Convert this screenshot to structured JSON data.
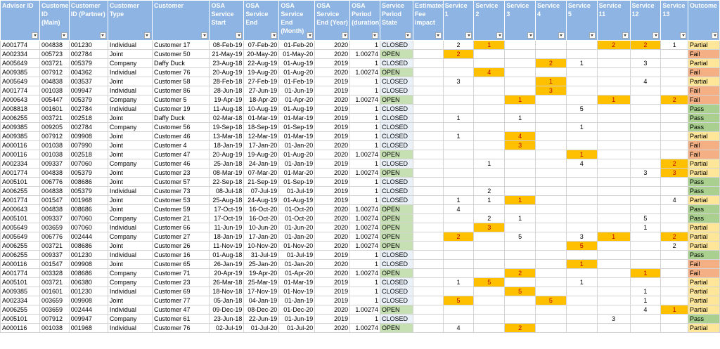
{
  "columns": [
    {
      "label": "Adviser ID",
      "align": "l"
    },
    {
      "label": "Customer ID (Main)",
      "align": "l"
    },
    {
      "label": "Customer ID (Partner)",
      "align": "l"
    },
    {
      "label": "Customer Type",
      "align": "l"
    },
    {
      "label": "Customer",
      "align": "l"
    },
    {
      "label": "OSA Service Start",
      "align": "r"
    },
    {
      "label": "OSA Service End",
      "align": "r"
    },
    {
      "label": "OSA Service End (Month)",
      "align": "r"
    },
    {
      "label": "OSA Service End (Year)",
      "align": "r"
    },
    {
      "label": "OSA Period (duration)",
      "align": "r"
    },
    {
      "label": "Service Period State",
      "align": "l"
    },
    {
      "label": "Estimated Fee impact",
      "align": "r"
    },
    {
      "label": "Service 1",
      "align": "c"
    },
    {
      "label": "Service 2",
      "align": "c"
    },
    {
      "label": "Service 3",
      "align": "c"
    },
    {
      "label": "Service 4",
      "align": "c"
    },
    {
      "label": "Service 5",
      "align": "c"
    },
    {
      "label": "Service 11",
      "align": "c"
    },
    {
      "label": "Service 12",
      "align": "c"
    },
    {
      "label": "Service 13",
      "align": "c"
    },
    {
      "label": "Outcome",
      "align": "l"
    }
  ],
  "colors": {
    "header_bg": "#8db4e2",
    "open_state": "#c6e0b4",
    "closed_state": "#eaf1f9",
    "service_highlight": "#ffc000",
    "service_highlight_text": "#c00000",
    "outcome_partial": "#ffe699",
    "outcome_fail": "#f4b084",
    "outcome_pass": "#a9d08e"
  },
  "rows": [
    {
      "cells": [
        "A001774",
        "004838",
        "001230",
        "Individual",
        "Customer 17",
        "08-Feb-19",
        "07-Feb-20",
        "01-Feb-20",
        "2020",
        "1",
        "CLOSED",
        "",
        "2",
        "1",
        "",
        "",
        "",
        "2",
        "2",
        "1",
        "Partial"
      ],
      "hl": [
        13,
        17,
        18
      ]
    },
    {
      "cells": [
        "A002334",
        "005723",
        "002784",
        "Joint",
        "Customer 50",
        "21-May-19",
        "20-May-20",
        "01-May-20",
        "2020",
        "1.00274",
        "OPEN",
        "",
        "2",
        "",
        "",
        "",
        "",
        "",
        "",
        "",
        "Fail"
      ],
      "hl": [
        12
      ]
    },
    {
      "cells": [
        "A005649",
        "003721",
        "005379",
        "Company",
        "Daffy Duck",
        "23-Aug-18",
        "22-Aug-19",
        "01-Aug-19",
        "2019",
        "1",
        "CLOSED",
        "",
        "",
        "",
        "",
        "2",
        "1",
        "",
        "3",
        "",
        "Partial"
      ],
      "hl": [
        15
      ]
    },
    {
      "cells": [
        "A009385",
        "007912",
        "004362",
        "Individual",
        "Customer 76",
        "20-Aug-19",
        "19-Aug-20",
        "01-Aug-20",
        "2020",
        "1.00274",
        "OPEN",
        "",
        "",
        "4",
        "",
        "",
        "",
        "",
        "",
        "",
        "Fail"
      ],
      "hl": [
        13
      ]
    },
    {
      "cells": [
        "A005649",
        "004838",
        "003537",
        "Joint",
        "Customer 58",
        "28-Feb-18",
        "27-Feb-19",
        "01-Feb-19",
        "2019",
        "1",
        "CLOSED",
        "",
        "3",
        "",
        "",
        "1",
        "",
        "",
        "4",
        "",
        "Partial"
      ],
      "hl": [
        15
      ]
    },
    {
      "cells": [
        "A001774",
        "001038",
        "009947",
        "Individual",
        "Customer 86",
        "28-Jun-18",
        "27-Jun-19",
        "01-Jun-19",
        "2019",
        "1",
        "CLOSED",
        "",
        "",
        "",
        "",
        "3",
        "",
        "",
        "",
        "",
        "Fail"
      ],
      "hl": [
        15
      ]
    },
    {
      "cells": [
        "A000643",
        "005447",
        "005379",
        "Company",
        "Customer 5",
        "19-Apr-19",
        "18-Apr-20",
        "01-Apr-20",
        "2020",
        "1.00274",
        "OPEN",
        "",
        "",
        "",
        "1",
        "",
        "",
        "1",
        "",
        "2",
        "Fail"
      ],
      "hl": [
        14,
        17,
        19
      ]
    },
    {
      "cells": [
        "A008818",
        "001601",
        "002784",
        "Individual",
        "Customer 19",
        "11-Aug-18",
        "10-Aug-19",
        "01-Aug-19",
        "2019",
        "1",
        "CLOSED",
        "",
        "",
        "",
        "",
        "",
        "5",
        "",
        "",
        "",
        "Pass"
      ],
      "hl": []
    },
    {
      "cells": [
        "A006255",
        "003721",
        "002518",
        "Joint",
        "Daffy Duck",
        "02-Mar-18",
        "01-Mar-19",
        "01-Mar-19",
        "2019",
        "1",
        "CLOSED",
        "",
        "1",
        "",
        "1",
        "",
        "",
        "",
        "",
        "",
        "Pass"
      ],
      "hl": []
    },
    {
      "cells": [
        "A009385",
        "009205",
        "002784",
        "Company",
        "Customer 56",
        "19-Sep-18",
        "18-Sep-19",
        "01-Sep-19",
        "2019",
        "1",
        "CLOSED",
        "",
        "",
        "",
        "",
        "",
        "1",
        "",
        "",
        "",
        "Pass"
      ],
      "hl": []
    },
    {
      "cells": [
        "A009385",
        "007912",
        "009908",
        "Joint",
        "Customer 46",
        "13-Mar-18",
        "12-Mar-19",
        "01-Mar-19",
        "2019",
        "1",
        "CLOSED",
        "",
        "1",
        "",
        "4",
        "",
        "",
        "",
        "",
        "",
        "Partial"
      ],
      "hl": [
        14
      ]
    },
    {
      "cells": [
        "A000116",
        "001038",
        "007990",
        "Joint",
        "Customer 4",
        "18-Jan-19",
        "17-Jan-20",
        "01-Jan-20",
        "2020",
        "1",
        "CLOSED",
        "",
        "",
        "",
        "3",
        "",
        "",
        "",
        "",
        "",
        "Fail"
      ],
      "hl": [
        14
      ]
    },
    {
      "cells": [
        "A000116",
        "001038",
        "002518",
        "Joint",
        "Customer 47",
        "20-Aug-19",
        "19-Aug-20",
        "01-Aug-20",
        "2020",
        "1.00274",
        "OPEN",
        "",
        "",
        "",
        "",
        "",
        "1",
        "",
        "",
        "",
        "Fail"
      ],
      "hl": [
        16
      ]
    },
    {
      "cells": [
        "A002334",
        "009337",
        "007060",
        "Company",
        "Customer 46",
        "25-Jan-18",
        "24-Jan-19",
        "01-Jan-19",
        "2019",
        "1",
        "CLOSED",
        "",
        "",
        "1",
        "",
        "",
        "4",
        "",
        "",
        "2",
        "Partial"
      ],
      "hl": [
        19
      ]
    },
    {
      "cells": [
        "A001774",
        "004838",
        "005379",
        "Joint",
        "Customer 23",
        "08-Mar-19",
        "07-Mar-20",
        "01-Mar-20",
        "2020",
        "1.00274",
        "OPEN",
        "",
        "",
        "",
        "",
        "",
        "",
        "",
        "3",
        "3",
        "Partial"
      ],
      "hl": [
        19
      ]
    },
    {
      "cells": [
        "A005101",
        "006776",
        "008686",
        "Joint",
        "Customer 57",
        "22-Sep-18",
        "21-Sep-19",
        "01-Sep-19",
        "2019",
        "1",
        "CLOSED",
        "",
        "",
        "",
        "",
        "",
        "",
        "",
        "",
        "",
        "Pass"
      ],
      "hl": []
    },
    {
      "cells": [
        "A006255",
        "004838",
        "005379",
        "Individual",
        "Customer 73",
        "08-Jul-18",
        "07-Jul-19",
        "01-Jul-19",
        "2019",
        "1",
        "CLOSED",
        "",
        "",
        "2",
        "",
        "",
        "",
        "",
        "",
        "",
        "Pass"
      ],
      "hl": []
    },
    {
      "cells": [
        "A001774",
        "001547",
        "001968",
        "Joint",
        "Customer 53",
        "25-Aug-18",
        "24-Aug-19",
        "01-Aug-19",
        "2019",
        "1",
        "CLOSED",
        "",
        "1",
        "1",
        "1",
        "",
        "",
        "",
        "",
        "4",
        "Partial"
      ],
      "hl": [
        14
      ]
    },
    {
      "cells": [
        "A000643",
        "004838",
        "008686",
        "Joint",
        "Customer 59",
        "17-Oct-19",
        "16-Oct-20",
        "01-Oct-20",
        "2020",
        "1.00274",
        "OPEN",
        "",
        "4",
        "",
        "",
        "",
        "",
        "",
        "",
        "",
        "Pass"
      ],
      "hl": []
    },
    {
      "cells": [
        "A005101",
        "009337",
        "007060",
        "Company",
        "Customer 21",
        "17-Oct-19",
        "16-Oct-20",
        "01-Oct-20",
        "2020",
        "1.00274",
        "OPEN",
        "",
        "",
        "2",
        "1",
        "",
        "",
        "",
        "5",
        "",
        "Pass"
      ],
      "hl": []
    },
    {
      "cells": [
        "A005649",
        "003659",
        "007060",
        "Individual",
        "Customer 66",
        "11-Jun-19",
        "10-Jun-20",
        "01-Jun-20",
        "2020",
        "1.00274",
        "OPEN",
        "",
        "",
        "3",
        "",
        "",
        "",
        "",
        "1",
        "",
        "Partial"
      ],
      "hl": [
        13
      ]
    },
    {
      "cells": [
        "A005649",
        "006776",
        "002444",
        "Company",
        "Customer 27",
        "18-Jan-19",
        "17-Jan-20",
        "01-Jan-20",
        "2020",
        "1.00274",
        "OPEN",
        "",
        "2",
        "",
        "5",
        "",
        "3",
        "1",
        "",
        "2",
        "Partial"
      ],
      "hl": [
        12,
        17,
        19
      ]
    },
    {
      "cells": [
        "A006255",
        "003721",
        "008686",
        "Joint",
        "Customer 26",
        "11-Nov-19",
        "10-Nov-20",
        "01-Nov-20",
        "2020",
        "1.00274",
        "OPEN",
        "",
        "",
        "",
        "",
        "",
        "5",
        "",
        "",
        "2",
        "Partial"
      ],
      "hl": [
        16
      ]
    },
    {
      "cells": [
        "A006255",
        "009337",
        "001230",
        "Individual",
        "Customer 16",
        "01-Aug-18",
        "31-Jul-19",
        "01-Jul-19",
        "2019",
        "1",
        "CLOSED",
        "",
        "",
        "",
        "",
        "",
        "",
        "",
        "",
        "",
        "Pass"
      ],
      "hl": []
    },
    {
      "cells": [
        "A000116",
        "001547",
        "009908",
        "Joint",
        "Customer 65",
        "26-Jan-19",
        "25-Jan-20",
        "01-Jan-20",
        "2020",
        "1",
        "CLOSED",
        "",
        "",
        "",
        "",
        "",
        "1",
        "",
        "",
        "",
        "Fail"
      ],
      "hl": [
        16
      ]
    },
    {
      "cells": [
        "A001774",
        "003328",
        "008686",
        "Company",
        "Customer 71",
        "20-Apr-19",
        "19-Apr-20",
        "01-Apr-20",
        "2020",
        "1.00274",
        "OPEN",
        "",
        "",
        "",
        "2",
        "",
        "",
        "",
        "1",
        "",
        "Fail"
      ],
      "hl": [
        14,
        18
      ]
    },
    {
      "cells": [
        "A005101",
        "003721",
        "006380",
        "Company",
        "Customer 23",
        "26-Mar-18",
        "25-Mar-19",
        "01-Mar-19",
        "2019",
        "1",
        "CLOSED",
        "",
        "1",
        "5",
        "",
        "",
        "1",
        "",
        "",
        "",
        "Partial"
      ],
      "hl": [
        13
      ]
    },
    {
      "cells": [
        "A009385",
        "001601",
        "001230",
        "Individual",
        "Customer 69",
        "18-Nov-18",
        "17-Nov-19",
        "01-Nov-19",
        "2019",
        "1",
        "CLOSED",
        "",
        "",
        "",
        "5",
        "",
        "",
        "",
        "1",
        "",
        "Partial"
      ],
      "hl": [
        14
      ]
    },
    {
      "cells": [
        "A002334",
        "003659",
        "009908",
        "Joint",
        "Customer 77",
        "05-Jan-18",
        "04-Jan-19",
        "01-Jan-19",
        "2019",
        "1",
        "CLOSED",
        "",
        "5",
        "",
        "",
        "5",
        "",
        "",
        "1",
        "",
        "Partial"
      ],
      "hl": [
        12,
        15
      ]
    },
    {
      "cells": [
        "A006255",
        "003659",
        "002444",
        "Individual",
        "Customer 47",
        "09-Dec-19",
        "08-Dec-20",
        "01-Dec-20",
        "2020",
        "1.00274",
        "OPEN",
        "",
        "",
        "",
        "",
        "",
        "",
        "",
        "4",
        "1",
        "Partial"
      ],
      "hl": [
        19
      ]
    },
    {
      "cells": [
        "A005101",
        "007912",
        "009947",
        "Company",
        "Customer 61",
        "23-Jun-18",
        "22-Jun-19",
        "01-Jun-19",
        "2019",
        "1",
        "CLOSED",
        "",
        "",
        "",
        "",
        "",
        "",
        "3",
        "",
        "",
        "Pass"
      ],
      "hl": []
    },
    {
      "cells": [
        "A000116",
        "001038",
        "001968",
        "Individual",
        "Customer 76",
        "02-Jul-19",
        "01-Jul-20",
        "01-Jul-20",
        "2020",
        "1.00274",
        "OPEN",
        "",
        "4",
        "",
        "2",
        "",
        "",
        "",
        "",
        "",
        "Partial"
      ],
      "hl": [
        14
      ]
    }
  ]
}
